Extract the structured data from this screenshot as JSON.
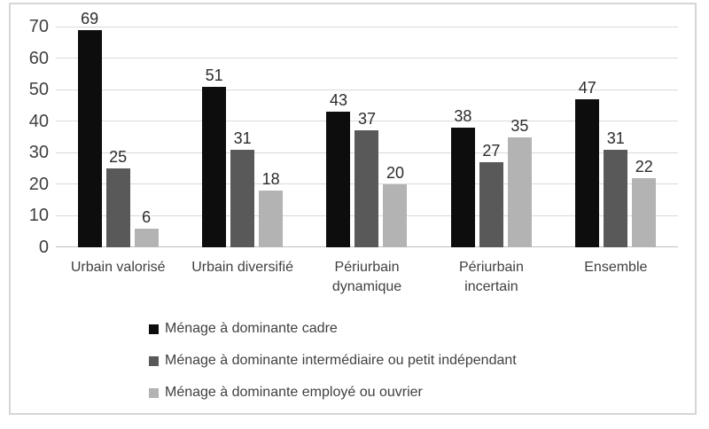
{
  "chart_data": {
    "type": "bar",
    "title": "",
    "categories": [
      "Urbain valorisé",
      "Urbain diversifié",
      "Périurbain dynamique",
      "Périurbain incertain",
      "Ensemble"
    ],
    "series": [
      {
        "name": "Ménage à dominante cadre",
        "color": "#0d0d0d",
        "values": [
          69,
          51,
          43,
          38,
          47
        ]
      },
      {
        "name": "Ménage à dominante intermédiaire ou petit indépendant",
        "color": "#595959",
        "values": [
          25,
          31,
          37,
          27,
          31
        ]
      },
      {
        "name": "Ménage à dominante employé ou ouvrier",
        "color": "#b3b3b3",
        "values": [
          6,
          18,
          20,
          35,
          22
        ]
      }
    ],
    "ylim": [
      0,
      70
    ],
    "yticks": [
      0,
      10,
      20,
      30,
      40,
      50,
      60,
      70
    ],
    "grid": true,
    "data_labels": true,
    "legend_position": "bottom-left"
  },
  "colors": {
    "background": "#ffffff",
    "frame_border": "#d6d6d6",
    "gridline": "#d9d9d9",
    "axis_line": "#bfbfbf",
    "tick_text": "#404040",
    "category_text": "#404040",
    "value_text": "#2b2b2b",
    "legend_text": "#404040"
  }
}
